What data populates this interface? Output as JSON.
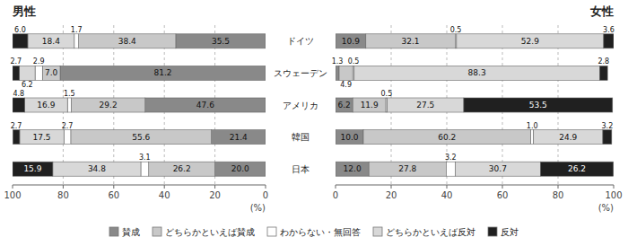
{
  "chart_data": [
    {
      "type": "bar",
      "orientation": "horizontal",
      "stacked": true,
      "title": "男性",
      "x_label": "(%)",
      "categories": [
        "日本",
        "韓国",
        "アメリカ",
        "スウェーデン",
        "ドイツ"
      ],
      "series": [
        {
          "name": "賛成",
          "color": "#898989",
          "values": [
            20.0,
            21.4,
            47.6,
            81.2,
            35.5
          ],
          "value_labels": [
            "20.0",
            "21.4",
            "47.6",
            "81.2",
            "35.5"
          ]
        },
        {
          "name": "どちらかといえば賛成",
          "color": "#c8c8c8",
          "values": [
            26.2,
            55.6,
            29.2,
            7.0,
            38.4
          ],
          "value_labels": [
            "26.2",
            "55.6",
            "29.2",
            "7.0",
            "38.4"
          ]
        },
        {
          "name": "わからない・無回答",
          "color": "#ffffff",
          "values": [
            3.1,
            2.7,
            1.5,
            2.9,
            1.7
          ]
        },
        {
          "name": "どちらかといえば反対",
          "color": "#d8d8d8",
          "values": [
            34.8,
            17.5,
            16.9,
            6.2,
            18.4
          ]
        },
        {
          "name": "反対",
          "color": "#202020",
          "values": [
            15.9,
            2.7,
            4.8,
            2.7,
            6.0
          ],
          "value_labels": [
            "15.9",
            "2.7",
            "4.8",
            "2.7",
            "6.0"
          ]
        }
      ],
      "xlim": [
        100,
        0
      ],
      "xticks": [
        0,
        20,
        40,
        60,
        80,
        100
      ],
      "grid": true,
      "data_labels": true,
      "legend": "bottom"
    },
    {
      "type": "bar",
      "orientation": "horizontal",
      "stacked": true,
      "title": "女性",
      "x_label": "(%)",
      "categories": [
        "日本",
        "韓国",
        "アメリカ",
        "スウェーデン",
        "ドイツ"
      ],
      "series": [
        {
          "name": "賛成",
          "color": "#898989",
          "values": [
            12.0,
            10.0,
            6.2,
            1.3,
            10.9
          ],
          "value_labels": [
            "12.0",
            "10.0",
            "6.2",
            "1.3",
            "10.9"
          ]
        },
        {
          "name": "どちらかといえば賛成",
          "color": "#c8c8c8",
          "values": [
            27.8,
            60.2,
            11.9,
            4.9,
            32.1
          ]
        },
        {
          "name": "わからない・無回答",
          "color": "#ffffff",
          "values": [
            3.2,
            1.0,
            0.5,
            0.5,
            0.5
          ],
          "value_labels": [
            "3.2",
            "1.0",
            "0.5",
            "0.5",
            "0.5"
          ]
        },
        {
          "name": "どちらかといえば反対",
          "color": "#d8d8d8",
          "values": [
            30.7,
            24.9,
            27.5,
            88.3,
            52.9
          ]
        },
        {
          "name": "反対",
          "color": "#202020",
          "values": [
            26.2,
            3.2,
            53.5,
            2.8,
            3.6
          ]
        }
      ],
      "xlim": [
        0,
        100
      ],
      "xticks": [
        0,
        20,
        40,
        60,
        80,
        100
      ],
      "grid": true,
      "data_labels": true
    }
  ]
}
